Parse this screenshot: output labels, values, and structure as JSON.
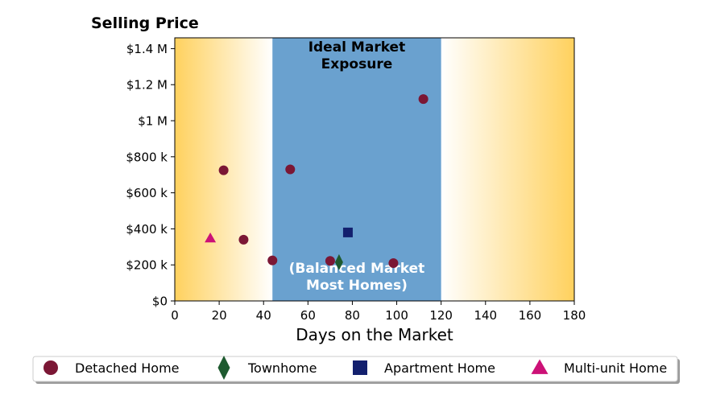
{
  "chart_data": {
    "type": "scatter",
    "title": "Selling Price",
    "xlabel": "Days on the Market",
    "ylabel": "",
    "xlim": [
      0,
      180
    ],
    "ylim": [
      0,
      1460000
    ],
    "x_ticks": [
      0,
      20,
      40,
      60,
      80,
      100,
      120,
      140,
      160,
      180
    ],
    "x_tick_labels": [
      "0",
      "20",
      "40",
      "60",
      "80",
      "100",
      "120",
      "140",
      "160",
      "180"
    ],
    "y_ticks": [
      0,
      200000,
      400000,
      600000,
      800000,
      1000000,
      1200000,
      1400000
    ],
    "y_tick_labels": [
      "$0",
      "$200 k",
      "$400 k",
      "$600 k",
      "$800 k",
      "$1 M",
      "$1.2 M",
      "$1.4 M"
    ],
    "grid": false,
    "legend_position": "bottom",
    "ideal_band": {
      "x_start": 44,
      "x_end": 120,
      "color": "#6aa1cf",
      "label_top": [
        "Ideal Market",
        "Exposure"
      ],
      "label_bottom": [
        "(Balanced Market",
        "Most Homes)"
      ]
    },
    "edge_gradient": {
      "color": "#ffd15e",
      "left_fade_end": 44,
      "right_fade_start": 120
    },
    "series": [
      {
        "name": "Detached Home",
        "marker": "circle",
        "color": "#7b1735",
        "points": [
          {
            "x": 22,
            "y": 725000
          },
          {
            "x": 31,
            "y": 340000
          },
          {
            "x": 44,
            "y": 225000
          },
          {
            "x": 52,
            "y": 730000
          },
          {
            "x": 70,
            "y": 222000
          },
          {
            "x": 98.5,
            "y": 210000
          },
          {
            "x": 112,
            "y": 1120000
          }
        ]
      },
      {
        "name": "Townhome",
        "marker": "diamond",
        "color": "#1e5a2f",
        "points": [
          {
            "x": 74,
            "y": 215000
          }
        ]
      },
      {
        "name": "Apartment Home",
        "marker": "square",
        "color": "#13206e",
        "points": [
          {
            "x": 78,
            "y": 380000
          }
        ]
      },
      {
        "name": "Multi-unit Home",
        "marker": "triangle",
        "color": "#cc1177",
        "points": [
          {
            "x": 16,
            "y": 348000
          }
        ]
      }
    ]
  }
}
